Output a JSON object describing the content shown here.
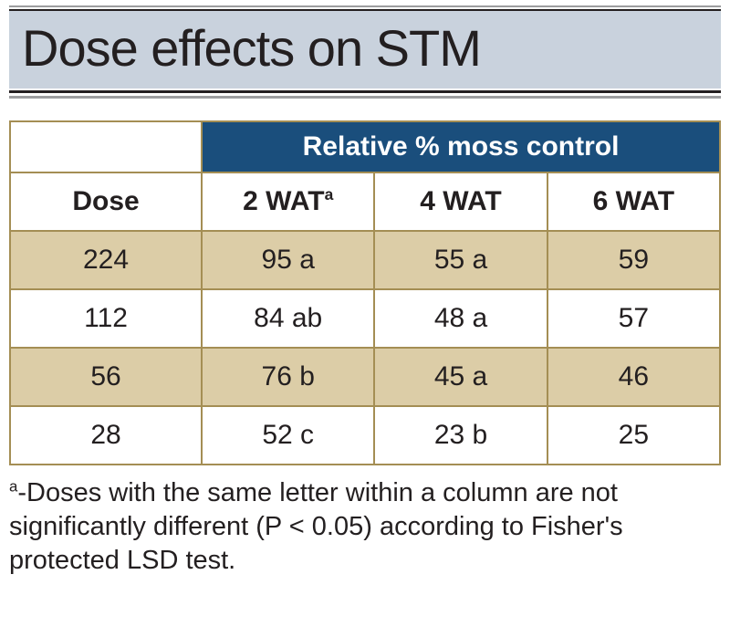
{
  "title": "Dose effects on STM",
  "colors": {
    "title_bg": "#c9d2dd",
    "spanner_bg": "#1a4e7c",
    "spanner_text": "#ffffff",
    "stripe_bg": "#dccda7",
    "border": "#a48e54",
    "text": "#231f20",
    "rule_dark": "#231f20",
    "rule_light": "#9c9d9f"
  },
  "table": {
    "spanner_label": "Relative % moss control",
    "columns": {
      "dose": "Dose",
      "wat2_prefix": "2 WAT",
      "wat2_sup": "a",
      "wat4": "4 WAT",
      "wat6": "6 WAT"
    },
    "rows": [
      {
        "dose": "224",
        "w2": "95 a",
        "w4": "55 a",
        "w6": "59",
        "stripe": true
      },
      {
        "dose": "112",
        "w2": "84 ab",
        "w4": "48 a",
        "w6": "57",
        "stripe": false
      },
      {
        "dose": "56",
        "w2": "76 b",
        "w4": "45 a",
        "w6": "46",
        "stripe": true
      },
      {
        "dose": "28",
        "w2": "52 c",
        "w4": "23 b",
        "w6": "25",
        "stripe": false
      }
    ]
  },
  "footnote": {
    "sup": "a",
    "text": "-Doses with the same letter within a column are not significantly different (P < 0.05) according to Fisher's protected LSD test."
  }
}
